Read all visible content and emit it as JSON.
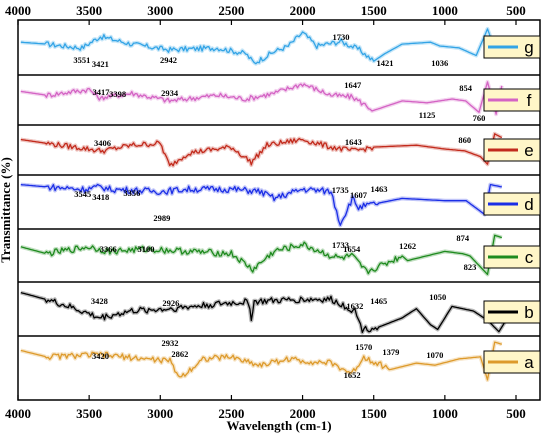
{
  "chart_data": {
    "type": "line",
    "title": "",
    "xlabel": "Wavelength (cm-1)",
    "ylabel": "Transmittance (%)",
    "xlim": [
      4000,
      500
    ],
    "x_ticks": [
      "4000",
      "3500",
      "3000",
      "2500",
      "2000",
      "1500",
      "1000",
      "500"
    ],
    "grid": false,
    "legend_placement": "right of each panel",
    "series": [
      {
        "name": "g",
        "color": "#33a4e6",
        "annotations": [
          {
            "text": "3551",
            "x": 3551
          },
          {
            "text": "3421",
            "x": 3421
          },
          {
            "text": "2942",
            "x": 2942
          },
          {
            "text": "1730",
            "x": 1730
          },
          {
            "text": "1421",
            "x": 1421
          },
          {
            "text": "1036",
            "x": 1036
          }
        ],
        "points": [
          [
            3980,
            0.6
          ],
          [
            3800,
            0.55
          ],
          [
            3551,
            0.45
          ],
          [
            3421,
            0.75
          ],
          [
            3200,
            0.55
          ],
          [
            2942,
            0.4
          ],
          [
            2600,
            0.45
          ],
          [
            2400,
            0.3
          ],
          [
            2340,
            0.05
          ],
          [
            2200,
            0.35
          ],
          [
            2100,
            0.5
          ],
          [
            2000,
            0.85
          ],
          [
            1900,
            0.5
          ],
          [
            1730,
            0.62
          ],
          [
            1600,
            0.4
          ],
          [
            1500,
            0.1
          ],
          [
            1421,
            0.3
          ],
          [
            1300,
            0.55
          ],
          [
            1100,
            0.6
          ],
          [
            1036,
            0.5
          ],
          [
            900,
            0.45
          ],
          [
            780,
            0.25
          ],
          [
            700,
            0.95
          ],
          [
            640,
            0.3
          ],
          [
            600,
            0.7
          ]
        ]
      },
      {
        "name": "f",
        "color": "#d463c4",
        "annotations": [
          {
            "text": "3417",
            "x": 3417
          },
          {
            "text": "3398",
            "x": 3300
          },
          {
            "text": "2934",
            "x": 2934
          },
          {
            "text": "1647",
            "x": 1647
          },
          {
            "text": "1125",
            "x": 1125
          },
          {
            "text": "854",
            "x": 854
          },
          {
            "text": "760",
            "x": 760
          }
        ],
        "points": [
          [
            3980,
            0.7
          ],
          [
            3800,
            0.6
          ],
          [
            3500,
            0.75
          ],
          [
            3417,
            0.5
          ],
          [
            3398,
            0.55
          ],
          [
            3200,
            0.65
          ],
          [
            2934,
            0.45
          ],
          [
            2600,
            0.6
          ],
          [
            2400,
            0.5
          ],
          [
            2200,
            0.65
          ],
          [
            2000,
            0.9
          ],
          [
            1800,
            0.6
          ],
          [
            1647,
            0.55
          ],
          [
            1500,
            0.2
          ],
          [
            1300,
            0.45
          ],
          [
            1125,
            0.4
          ],
          [
            950,
            0.5
          ],
          [
            854,
            0.45
          ],
          [
            760,
            0.15
          ],
          [
            700,
            0.95
          ],
          [
            640,
            0.1
          ],
          [
            600,
            0.85
          ]
        ]
      },
      {
        "name": "e",
        "color": "#c22a1c",
        "annotations": [
          {
            "text": "3406",
            "x": 3406
          },
          {
            "text": "1643",
            "x": 1643
          },
          {
            "text": "860",
            "x": 860
          }
        ],
        "points": [
          [
            3980,
            0.75
          ],
          [
            3800,
            0.65
          ],
          [
            3406,
            0.45
          ],
          [
            3200,
            0.6
          ],
          [
            3000,
            0.65
          ],
          [
            2934,
            0.05
          ],
          [
            2800,
            0.4
          ],
          [
            2500,
            0.55
          ],
          [
            2360,
            0.15
          ],
          [
            2250,
            0.6
          ],
          [
            2000,
            0.75
          ],
          [
            1800,
            0.55
          ],
          [
            1643,
            0.45
          ],
          [
            1500,
            0.55
          ],
          [
            1200,
            0.6
          ],
          [
            1000,
            0.5
          ],
          [
            860,
            0.45
          ],
          [
            750,
            0.3
          ],
          [
            700,
            0.1
          ],
          [
            650,
            0.9
          ],
          [
            600,
            0.8
          ]
        ]
      },
      {
        "name": "d",
        "color": "#1b2ee6",
        "annotations": [
          {
            "text": "3545",
            "x": 3545
          },
          {
            "text": "3418",
            "x": 3418
          },
          {
            "text": "3356",
            "x": 3200
          },
          {
            "text": "2989",
            "x": 2989
          },
          {
            "text": "1735",
            "x": 1735
          },
          {
            "text": "1607",
            "x": 1607
          },
          {
            "text": "1463",
            "x": 1463
          }
        ],
        "points": [
          [
            3980,
            0.9
          ],
          [
            3800,
            0.85
          ],
          [
            3545,
            0.8
          ],
          [
            3418,
            0.85
          ],
          [
            3356,
            0.8
          ],
          [
            3000,
            0.75
          ],
          [
            2800,
            0.8
          ],
          [
            2500,
            0.8
          ],
          [
            2300,
            0.75
          ],
          [
            2200,
            0.6
          ],
          [
            2000,
            0.8
          ],
          [
            1800,
            0.75
          ],
          [
            1735,
            0.05
          ],
          [
            1650,
            0.6
          ],
          [
            1607,
            0.4
          ],
          [
            1463,
            0.5
          ],
          [
            1300,
            0.6
          ],
          [
            1000,
            0.55
          ],
          [
            850,
            0.55
          ],
          [
            720,
            0.25
          ],
          [
            680,
            0.9
          ],
          [
            600,
            0.85
          ]
        ]
      },
      {
        "name": "c",
        "color": "#1e8a1e",
        "annotations": [
          {
            "text": "3366",
            "x": 3366
          },
          {
            "text": "3100",
            "x": 3100
          },
          {
            "text": "1733",
            "x": 1733
          },
          {
            "text": "1654",
            "x": 1654
          },
          {
            "text": "1262",
            "x": 1262
          },
          {
            "text": "874",
            "x": 874
          },
          {
            "text": "823",
            "x": 823
          }
        ],
        "points": [
          [
            3980,
            0.7
          ],
          [
            3800,
            0.55
          ],
          [
            3500,
            0.7
          ],
          [
            3366,
            0.6
          ],
          [
            3100,
            0.65
          ],
          [
            2800,
            0.6
          ],
          [
            2500,
            0.55
          ],
          [
            2350,
            0.2
          ],
          [
            2200,
            0.6
          ],
          [
            2000,
            0.75
          ],
          [
            1800,
            0.5
          ],
          [
            1733,
            0.45
          ],
          [
            1654,
            0.5
          ],
          [
            1550,
            0.15
          ],
          [
            1300,
            0.5
          ],
          [
            1262,
            0.4
          ],
          [
            1000,
            0.6
          ],
          [
            874,
            0.55
          ],
          [
            823,
            0.5
          ],
          [
            700,
            0.1
          ],
          [
            650,
            0.95
          ],
          [
            600,
            0.9
          ]
        ]
      },
      {
        "name": "b",
        "color": "#000000",
        "annotations": [
          {
            "text": "3428",
            "x": 3428
          },
          {
            "text": "2926",
            "x": 2926
          },
          {
            "text": "1632",
            "x": 1632
          },
          {
            "text": "1465",
            "x": 1465
          },
          {
            "text": "1050",
            "x": 1050
          }
        ],
        "points": [
          [
            3980,
            0.9
          ],
          [
            3800,
            0.75
          ],
          [
            3600,
            0.55
          ],
          [
            3428,
            0.35
          ],
          [
            3200,
            0.5
          ],
          [
            2926,
            0.55
          ],
          [
            2600,
            0.65
          ],
          [
            2380,
            0.7
          ],
          [
            2360,
            0.35
          ],
          [
            2340,
            0.7
          ],
          [
            2000,
            0.75
          ],
          [
            1800,
            0.75
          ],
          [
            1632,
            0.5
          ],
          [
            1580,
            0.1
          ],
          [
            1465,
            0.15
          ],
          [
            1300,
            0.35
          ],
          [
            1200,
            0.55
          ],
          [
            1100,
            0.2
          ],
          [
            1050,
            0.1
          ],
          [
            950,
            0.6
          ],
          [
            800,
            0.5
          ],
          [
            700,
            0.3
          ],
          [
            620,
            0.05
          ],
          [
            580,
            0.25
          ]
        ]
      },
      {
        "name": "a",
        "color": "#dd9a2b",
        "annotations": [
          {
            "text": "3420",
            "x": 3420
          },
          {
            "text": "2932",
            "x": 2932
          },
          {
            "text": "2862",
            "x": 2862
          },
          {
            "text": "1570",
            "x": 1570
          },
          {
            "text": "1652",
            "x": 1652
          },
          {
            "text": "1379",
            "x": 1379
          },
          {
            "text": "1070",
            "x": 1070
          }
        ],
        "points": [
          [
            3980,
            0.75
          ],
          [
            3800,
            0.6
          ],
          [
            3420,
            0.65
          ],
          [
            3100,
            0.55
          ],
          [
            2932,
            0.5
          ],
          [
            2862,
            0.1
          ],
          [
            2700,
            0.55
          ],
          [
            2500,
            0.6
          ],
          [
            2300,
            0.4
          ],
          [
            2100,
            0.55
          ],
          [
            2000,
            0.5
          ],
          [
            1800,
            0.45
          ],
          [
            1652,
            0.2
          ],
          [
            1570,
            0.6
          ],
          [
            1379,
            0.3
          ],
          [
            1200,
            0.45
          ],
          [
            1070,
            0.4
          ],
          [
            900,
            0.55
          ],
          [
            750,
            0.6
          ],
          [
            700,
            0.05
          ],
          [
            650,
            0.95
          ],
          [
            600,
            0.9
          ]
        ]
      }
    ]
  }
}
